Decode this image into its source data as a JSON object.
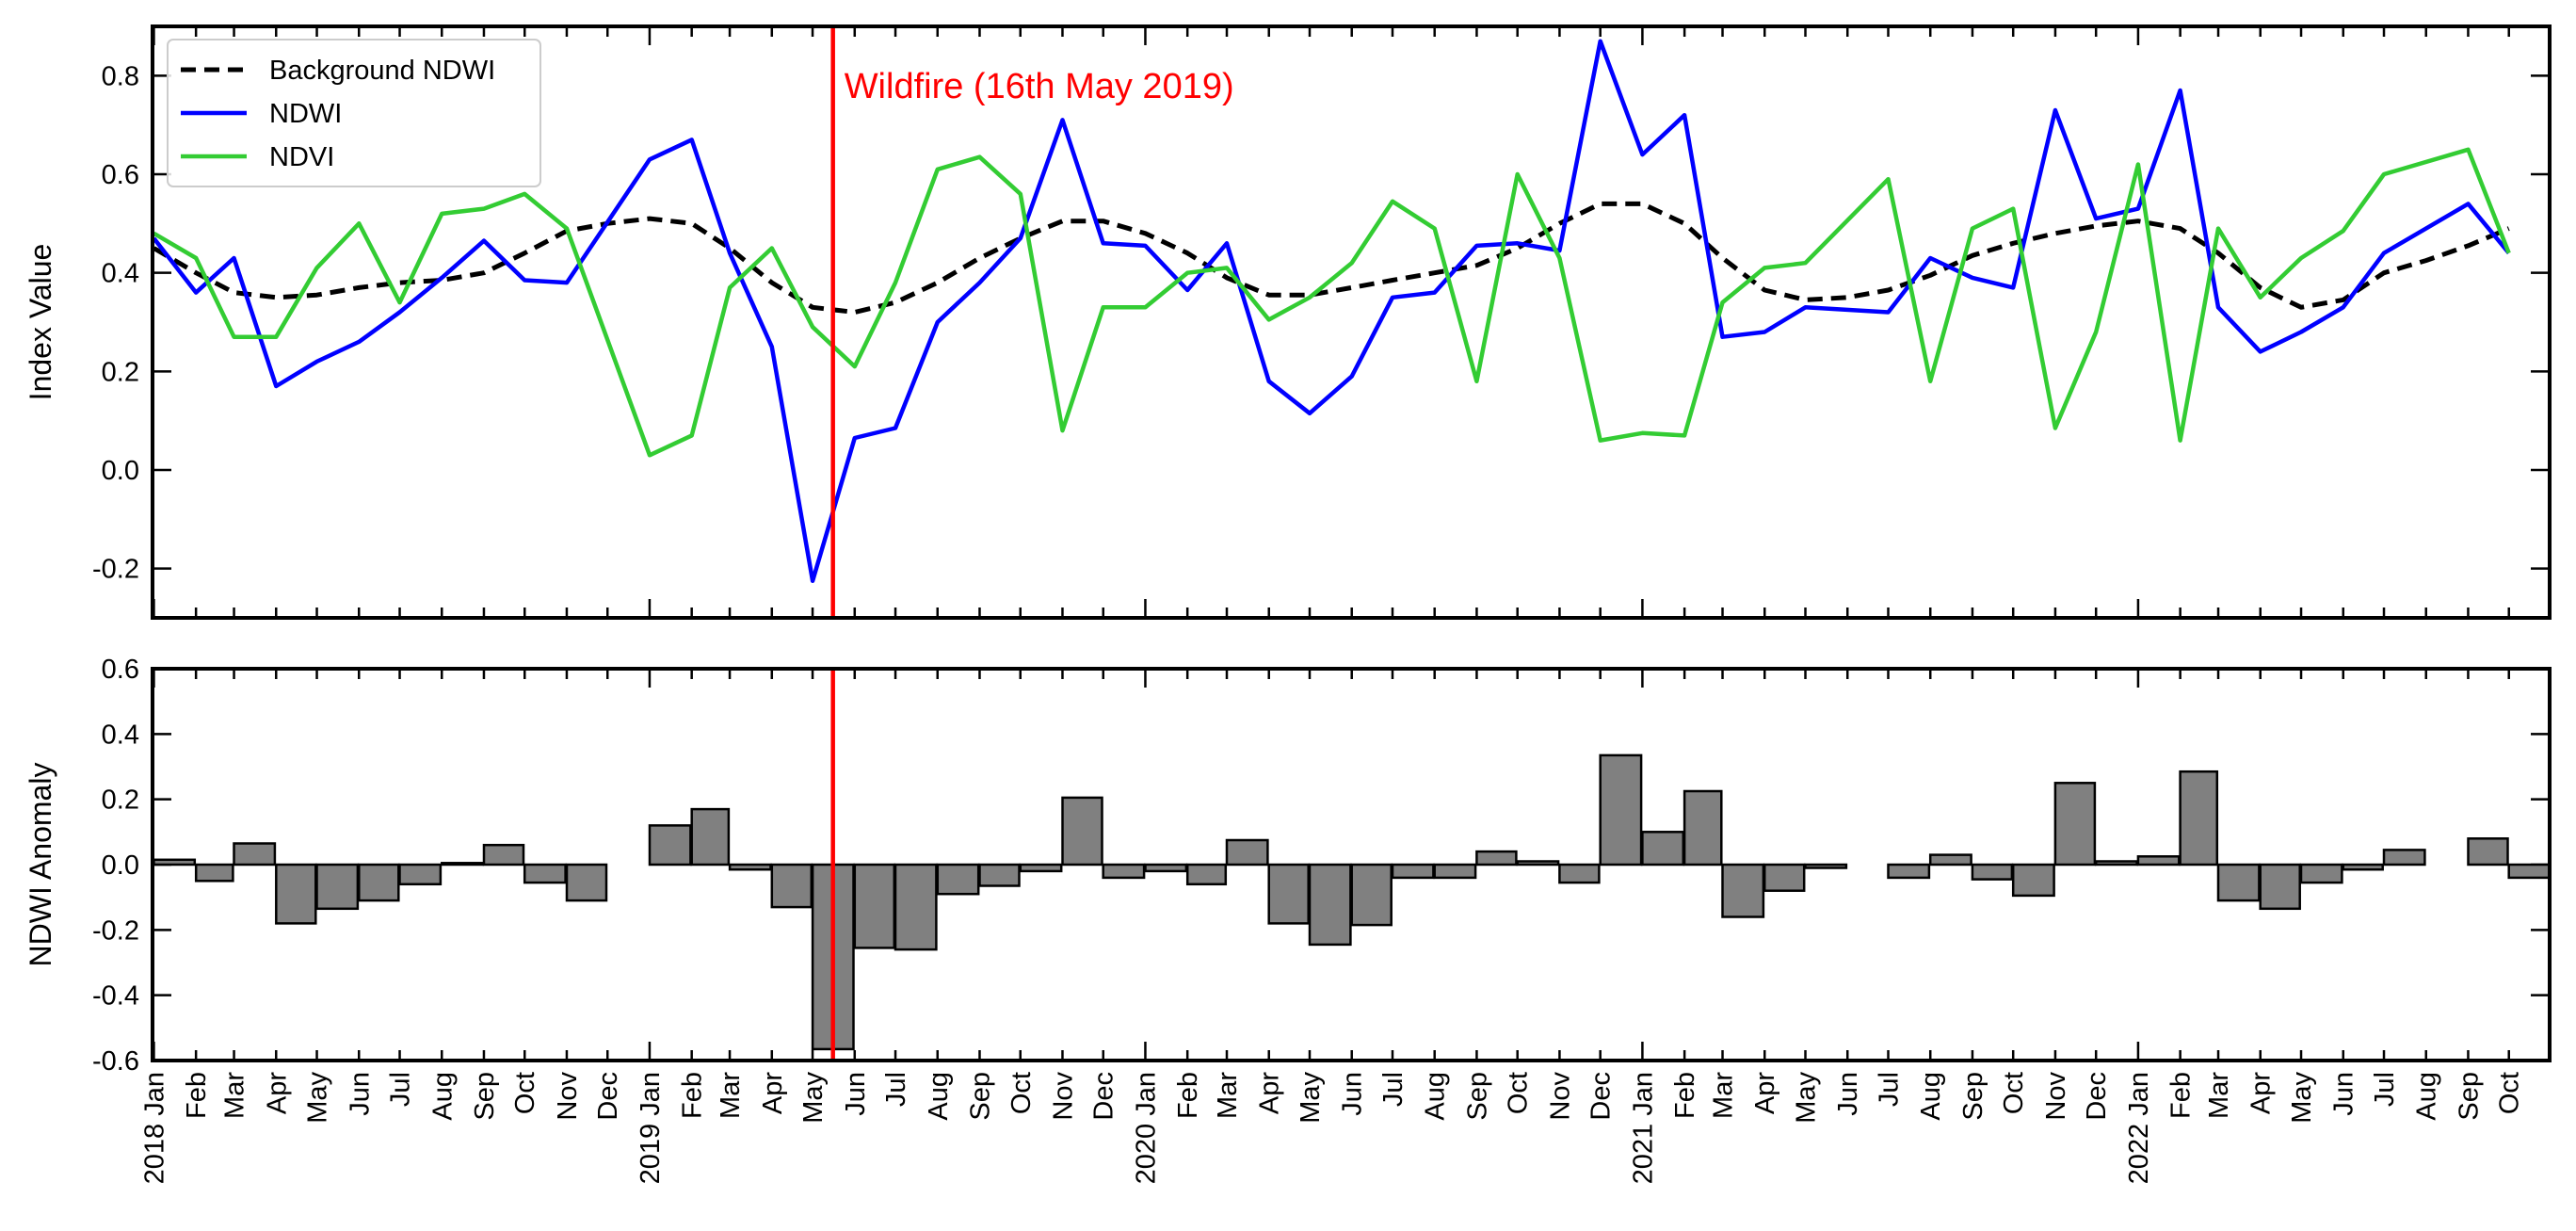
{
  "chart_data": [
    {
      "type": "line",
      "ylabel": "Index Value",
      "ylim": [
        -0.3,
        0.9
      ],
      "yticks": [
        -0.2,
        0.0,
        0.2,
        0.4,
        0.6,
        0.8
      ],
      "xlim": [
        "2017-12-31",
        "2022-10-31"
      ],
      "grid": false,
      "legend_position": "top-left",
      "annotation": {
        "label": "Wildfire (16th May 2019)",
        "date": "2019-05-16",
        "color": "#ff0000"
      },
      "series": [
        {
          "name": "Background NDWI",
          "color": "#000000",
          "style": "dashed",
          "x": [
            "2018-01",
            "2018-02",
            "2018-03",
            "2018-04",
            "2018-05",
            "2018-06",
            "2018-07",
            "2018-08",
            "2018-09",
            "2018-10",
            "2018-11",
            "2018-12",
            "2019-01",
            "2019-02",
            "2019-03",
            "2019-04",
            "2019-05",
            "2019-06",
            "2019-07",
            "2019-08",
            "2019-09",
            "2019-10",
            "2019-11",
            "2019-12",
            "2020-01",
            "2020-02",
            "2020-03",
            "2020-04",
            "2020-05",
            "2020-06",
            "2020-07",
            "2020-08",
            "2020-09",
            "2020-10",
            "2020-11",
            "2020-12",
            "2021-01",
            "2021-02",
            "2021-03",
            "2021-04",
            "2021-05",
            "2021-06",
            "2021-07",
            "2021-08",
            "2021-09",
            "2021-10",
            "2021-11",
            "2021-12",
            "2022-01",
            "2022-02",
            "2022-03",
            "2022-04",
            "2022-05",
            "2022-06",
            "2022-07",
            "2022-08",
            "2022-09",
            "2022-10"
          ],
          "values": [
            0.45,
            0.4,
            0.36,
            0.35,
            0.355,
            0.37,
            0.38,
            0.385,
            0.4,
            0.44,
            0.485,
            0.5,
            0.51,
            0.5,
            0.45,
            0.38,
            0.33,
            0.32,
            0.34,
            0.38,
            0.43,
            0.47,
            0.505,
            0.505,
            0.48,
            0.44,
            0.39,
            0.355,
            0.355,
            0.37,
            0.385,
            0.4,
            0.415,
            0.45,
            0.5,
            0.54,
            0.54,
            0.5,
            0.43,
            0.365,
            0.345,
            0.35,
            0.365,
            0.395,
            0.435,
            0.46,
            0.48,
            0.495,
            0.505,
            0.49,
            0.44,
            0.37,
            0.33,
            0.345,
            0.4,
            0.425,
            0.455,
            0.49
          ]
        },
        {
          "name": "NDWI",
          "color": "#0000ff",
          "style": "solid",
          "x": [
            "2018-01",
            "2018-02",
            "2018-03",
            "2018-04",
            "2018-05",
            "2018-06",
            "2018-07",
            "2018-08",
            "2018-09",
            "2018-10",
            "2018-11",
            "2019-01",
            "2019-02",
            "2019-03",
            "2019-04",
            "2019-05",
            "2019-06",
            "2019-07",
            "2019-08",
            "2019-09",
            "2019-10",
            "2019-11",
            "2019-12",
            "2020-01",
            "2020-02",
            "2020-03",
            "2020-04",
            "2020-05",
            "2020-06",
            "2020-07",
            "2020-08",
            "2020-09",
            "2020-10",
            "2020-11",
            "2020-12",
            "2021-01",
            "2021-02",
            "2021-03",
            "2021-04",
            "2021-05",
            "2021-07",
            "2021-08",
            "2021-09",
            "2021-10",
            "2021-11",
            "2021-12",
            "2022-01",
            "2022-02",
            "2022-03",
            "2022-04",
            "2022-05",
            "2022-06",
            "2022-07",
            "2022-09",
            "2022-10"
          ],
          "values": [
            0.47,
            0.36,
            0.43,
            0.17,
            0.22,
            0.26,
            0.32,
            0.39,
            0.465,
            0.385,
            0.38,
            0.63,
            0.67,
            0.44,
            0.25,
            -0.225,
            0.065,
            0.085,
            0.3,
            0.38,
            0.47,
            0.71,
            0.46,
            0.455,
            0.365,
            0.46,
            0.18,
            0.115,
            0.19,
            0.35,
            0.36,
            0.455,
            0.46,
            0.445,
            0.87,
            0.64,
            0.72,
            0.27,
            0.28,
            0.33,
            0.32,
            0.43,
            0.39,
            0.37,
            0.73,
            0.51,
            0.53,
            0.77,
            0.33,
            0.24,
            0.28,
            0.33,
            0.44,
            0.54,
            0.44
          ]
        },
        {
          "name": "NDVI",
          "color": "#33cc33",
          "style": "solid",
          "x": [
            "2018-01",
            "2018-02",
            "2018-03",
            "2018-04",
            "2018-05",
            "2018-06",
            "2018-07",
            "2018-08",
            "2018-09",
            "2018-10",
            "2018-11",
            "2019-01",
            "2019-02",
            "2019-03",
            "2019-04",
            "2019-05",
            "2019-06",
            "2019-07",
            "2019-08",
            "2019-09",
            "2019-10",
            "2019-11",
            "2019-12",
            "2020-01",
            "2020-02",
            "2020-03",
            "2020-04",
            "2020-05",
            "2020-06",
            "2020-07",
            "2020-08",
            "2020-09",
            "2020-10",
            "2020-11",
            "2020-12",
            "2021-01",
            "2021-02",
            "2021-03",
            "2021-04",
            "2021-05",
            "2021-07",
            "2021-08",
            "2021-09",
            "2021-10",
            "2021-11",
            "2021-12",
            "2022-01",
            "2022-02",
            "2022-03",
            "2022-04",
            "2022-05",
            "2022-06",
            "2022-07",
            "2022-09",
            "2022-10"
          ],
          "values": [
            0.48,
            0.43,
            0.27,
            0.27,
            0.41,
            0.5,
            0.34,
            0.52,
            0.53,
            0.56,
            0.49,
            0.03,
            0.07,
            0.37,
            0.45,
            0.29,
            0.21,
            0.38,
            0.61,
            0.635,
            0.56,
            0.08,
            0.33,
            0.33,
            0.4,
            0.41,
            0.305,
            0.35,
            0.42,
            0.545,
            0.49,
            0.18,
            0.6,
            0.43,
            0.06,
            0.075,
            0.07,
            0.34,
            0.41,
            0.42,
            0.59,
            0.18,
            0.49,
            0.53,
            0.085,
            0.28,
            0.62,
            0.06,
            0.49,
            0.35,
            0.43,
            0.485,
            0.6,
            0.65,
            0.44
          ]
        }
      ]
    },
    {
      "type": "bar",
      "ylabel": "NDWI Anomaly",
      "ylim": [
        -0.6,
        0.6
      ],
      "yticks": [
        -0.6,
        -0.4,
        -0.2,
        0.0,
        0.2,
        0.4,
        0.6
      ],
      "xlim": [
        "2017-12-31",
        "2022-10-31"
      ],
      "grid": false,
      "bar_color": "#808080",
      "x": [
        "2018-01",
        "2018-02",
        "2018-03",
        "2018-04",
        "2018-05",
        "2018-06",
        "2018-07",
        "2018-08",
        "2018-09",
        "2018-10",
        "2018-11",
        "2019-01",
        "2019-02",
        "2019-03",
        "2019-04",
        "2019-05",
        "2019-06",
        "2019-07",
        "2019-08",
        "2019-09",
        "2019-10",
        "2019-11",
        "2019-12",
        "2020-01",
        "2020-02",
        "2020-03",
        "2020-04",
        "2020-05",
        "2020-06",
        "2020-07",
        "2020-08",
        "2020-09",
        "2020-10",
        "2020-11",
        "2020-12",
        "2021-01",
        "2021-02",
        "2021-03",
        "2021-04",
        "2021-05",
        "2021-07",
        "2021-08",
        "2021-09",
        "2021-10",
        "2021-11",
        "2021-12",
        "2022-01",
        "2022-02",
        "2022-03",
        "2022-04",
        "2022-05",
        "2022-06",
        "2022-07",
        "2022-09",
        "2022-10"
      ],
      "values": [
        0.015,
        -0.05,
        0.065,
        -0.18,
        -0.135,
        -0.11,
        -0.06,
        0.005,
        0.06,
        -0.055,
        -0.11,
        0.12,
        0.17,
        -0.015,
        -0.13,
        -0.565,
        -0.255,
        -0.26,
        -0.09,
        -0.065,
        -0.02,
        0.205,
        -0.04,
        -0.02,
        -0.06,
        0.075,
        -0.18,
        -0.245,
        -0.185,
        -0.04,
        -0.04,
        0.04,
        0.01,
        -0.055,
        0.335,
        0.1,
        0.225,
        -0.16,
        -0.08,
        -0.01,
        -0.04,
        0.03,
        -0.045,
        -0.095,
        0.25,
        0.01,
        0.025,
        0.285,
        -0.11,
        -0.135,
        -0.055,
        -0.015,
        0.045,
        0.08,
        -0.04
      ]
    }
  ],
  "x_axis": {
    "tick_labels": [
      {
        "date": "2018-01",
        "label": "2018 Jan"
      },
      {
        "date": "2018-02",
        "label": "Feb"
      },
      {
        "date": "2018-03",
        "label": "Mar"
      },
      {
        "date": "2018-04",
        "label": "Apr"
      },
      {
        "date": "2018-05",
        "label": "May"
      },
      {
        "date": "2018-06",
        "label": "Jun"
      },
      {
        "date": "2018-07",
        "label": "Jul"
      },
      {
        "date": "2018-08",
        "label": "Aug"
      },
      {
        "date": "2018-09",
        "label": "Sep"
      },
      {
        "date": "2018-10",
        "label": "Oct"
      },
      {
        "date": "2018-11",
        "label": "Nov"
      },
      {
        "date": "2018-12",
        "label": "Dec"
      },
      {
        "date": "2019-01",
        "label": "2019 Jan"
      },
      {
        "date": "2019-02",
        "label": "Feb"
      },
      {
        "date": "2019-03",
        "label": "Mar"
      },
      {
        "date": "2019-04",
        "label": "Apr"
      },
      {
        "date": "2019-05",
        "label": "May"
      },
      {
        "date": "2019-06",
        "label": "Jun"
      },
      {
        "date": "2019-07",
        "label": "Jul"
      },
      {
        "date": "2019-08",
        "label": "Aug"
      },
      {
        "date": "2019-09",
        "label": "Sep"
      },
      {
        "date": "2019-10",
        "label": "Oct"
      },
      {
        "date": "2019-11",
        "label": "Nov"
      },
      {
        "date": "2019-12",
        "label": "Dec"
      },
      {
        "date": "2020-01",
        "label": "2020 Jan"
      },
      {
        "date": "2020-02",
        "label": "Feb"
      },
      {
        "date": "2020-03",
        "label": "Mar"
      },
      {
        "date": "2020-04",
        "label": "Apr"
      },
      {
        "date": "2020-05",
        "label": "May"
      },
      {
        "date": "2020-06",
        "label": "Jun"
      },
      {
        "date": "2020-07",
        "label": "Jul"
      },
      {
        "date": "2020-08",
        "label": "Aug"
      },
      {
        "date": "2020-09",
        "label": "Sep"
      },
      {
        "date": "2020-10",
        "label": "Oct"
      },
      {
        "date": "2020-11",
        "label": "Nov"
      },
      {
        "date": "2020-12",
        "label": "Dec"
      },
      {
        "date": "2021-01",
        "label": "2021 Jan"
      },
      {
        "date": "2021-02",
        "label": "Feb"
      },
      {
        "date": "2021-03",
        "label": "Mar"
      },
      {
        "date": "2021-04",
        "label": "Apr"
      },
      {
        "date": "2021-05",
        "label": "May"
      },
      {
        "date": "2021-06",
        "label": "Jun"
      },
      {
        "date": "2021-07",
        "label": "Jul"
      },
      {
        "date": "2021-08",
        "label": "Aug"
      },
      {
        "date": "2021-09",
        "label": "Sep"
      },
      {
        "date": "2021-10",
        "label": "Oct"
      },
      {
        "date": "2021-11",
        "label": "Nov"
      },
      {
        "date": "2021-12",
        "label": "Dec"
      },
      {
        "date": "2022-01",
        "label": "2022 Jan"
      },
      {
        "date": "2022-02",
        "label": "Feb"
      },
      {
        "date": "2022-03",
        "label": "Mar"
      },
      {
        "date": "2022-04",
        "label": "Apr"
      },
      {
        "date": "2022-05",
        "label": "May"
      },
      {
        "date": "2022-06",
        "label": "Jun"
      },
      {
        "date": "2022-07",
        "label": "Jul"
      },
      {
        "date": "2022-08",
        "label": "Aug"
      },
      {
        "date": "2022-09",
        "label": "Sep"
      },
      {
        "date": "2022-10",
        "label": "Oct"
      }
    ]
  }
}
